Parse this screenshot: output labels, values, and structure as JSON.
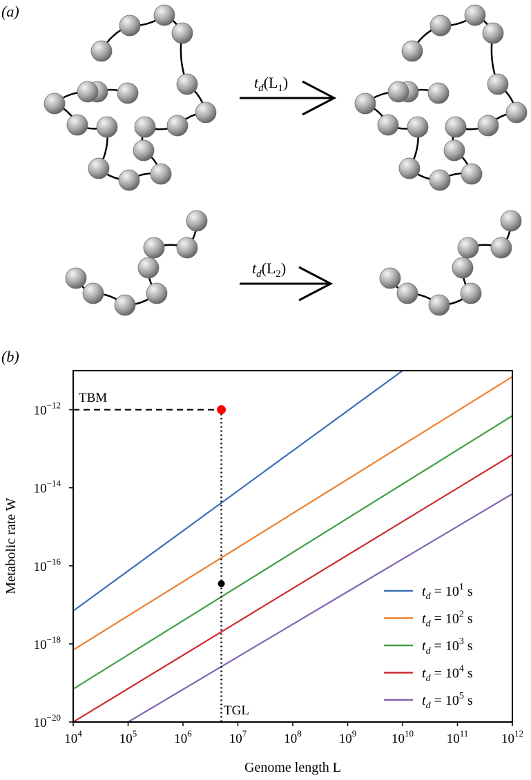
{
  "panel_a": {
    "label": "(a)",
    "arrows": [
      {
        "t": "t",
        "sub": "d",
        "arg_open": "(L",
        "arg_sub": "1",
        "arg_close": ")"
      },
      {
        "t": "t",
        "sub": "d",
        "arg_open": "(L",
        "arg_sub": "2",
        "arg_close": ")"
      }
    ]
  },
  "panel_b": {
    "label": "(b)",
    "annotations": {
      "tbm": "TBM",
      "tgl": "TGL"
    }
  },
  "colors": {
    "series": [
      "#3b6fb6",
      "#ef7f2d",
      "#3ea043",
      "#cc2b2f",
      "#8064b4"
    ],
    "marker_tbm": "#ff0000",
    "marker_intersect": "#000000",
    "bead": "#9a9a9a"
  },
  "chart_data": {
    "type": "line",
    "xlabel": "Genome length L",
    "ylabel": "Metabolic rate W",
    "xscale": "log",
    "yscale": "log",
    "xlim": [
      10000,
      1000000000000
    ],
    "ylim": [
      1e-20,
      1e-11
    ],
    "x_tick_exponents": [
      4,
      5,
      6,
      7,
      8,
      9,
      10,
      11,
      12
    ],
    "y_tick_exponents": [
      -12,
      -14,
      -16,
      -18,
      -20
    ],
    "legend_position": "lower right",
    "series": [
      {
        "name": "t_d = 10^1 s",
        "td_base": "10",
        "td_exp": "1",
        "unit": "s",
        "points": [
          [
            10000,
            7e-18
          ],
          [
            10000000000,
            1e-11
          ]
        ]
      },
      {
        "name": "t_d = 10^2 s",
        "td_base": "10",
        "td_exp": "2",
        "unit": "s",
        "points": [
          [
            10000,
            7e-19
          ],
          [
            1000000000000,
            7e-12
          ]
        ]
      },
      {
        "name": "t_d = 10^3 s",
        "td_base": "10",
        "td_exp": "3",
        "unit": "s",
        "points": [
          [
            10000,
            7e-20
          ],
          [
            1000000000000,
            7e-13
          ]
        ]
      },
      {
        "name": "t_d = 10^4 s",
        "td_base": "10",
        "td_exp": "4",
        "unit": "s",
        "points": [
          [
            10000,
            1e-20
          ],
          [
            1000000000000,
            7e-14
          ]
        ]
      },
      {
        "name": "t_d = 10^5 s",
        "td_base": "10",
        "td_exp": "5",
        "unit": "s",
        "points": [
          [
            100000,
            1e-20
          ],
          [
            1000000000000,
            7e-15
          ]
        ]
      }
    ],
    "reference_points": {
      "tbm": {
        "x": 5000000,
        "y": 1e-12
      },
      "intersection": {
        "x": 5000000,
        "y": 3.5e-17
      }
    }
  }
}
